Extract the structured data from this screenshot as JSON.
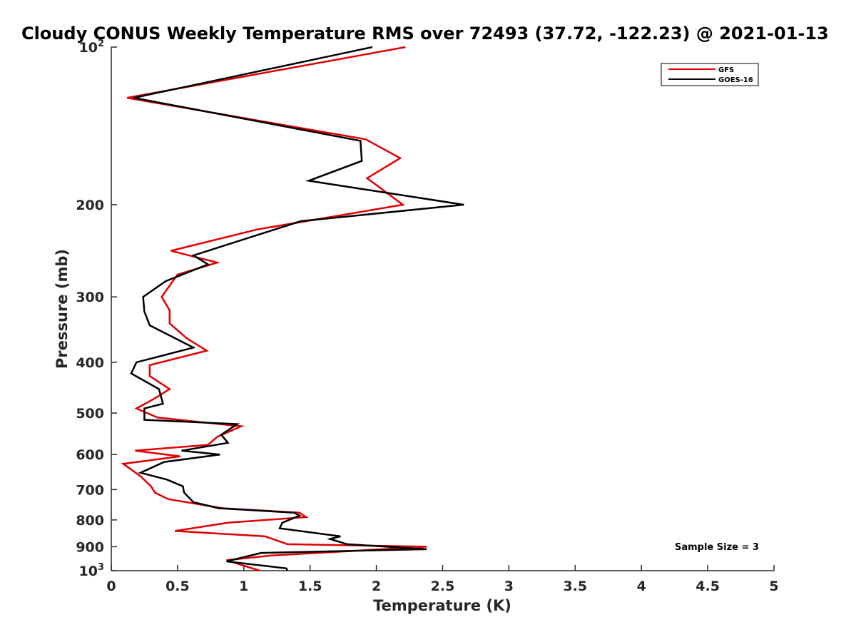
{
  "chart_data": {
    "type": "line",
    "title": "Cloudy CONUS Weekly Temperature RMS over 72493 (37.72, -122.23) @ 2021-01-13",
    "xlabel": "Temperature (K)",
    "ylabel": "Pressure (mb)",
    "xlim": [
      0,
      5
    ],
    "ylim": [
      100,
      1000
    ],
    "y_scale": "log",
    "y_reversed": true,
    "x_ticks": [
      "0",
      "0.5",
      "1",
      "1.5",
      "2",
      "2.5",
      "3",
      "3.5",
      "4",
      "4.5",
      "5"
    ],
    "y_ticks": [
      {
        "value": 100,
        "base": "10",
        "exp": "2"
      },
      {
        "value": 200,
        "label": "200"
      },
      {
        "value": 300,
        "label": "300"
      },
      {
        "value": 400,
        "label": "400"
      },
      {
        "value": 500,
        "label": "500"
      },
      {
        "value": 600,
        "label": "600"
      },
      {
        "value": 700,
        "label": "700"
      },
      {
        "value": 800,
        "label": "800"
      },
      {
        "value": 900,
        "label": "900"
      },
      {
        "value": 1000,
        "base": "10",
        "exp": "3"
      }
    ],
    "grid": false,
    "legend_position": "top-right",
    "annotation": "Sample Size = 3",
    "series": [
      {
        "name": "GFS",
        "color": "#e00000",
        "points": [
          [
            2.22,
            100
          ],
          [
            0.12,
            125
          ],
          [
            1.92,
            150
          ],
          [
            2.18,
            163
          ],
          [
            1.93,
            178
          ],
          [
            2.2,
            200
          ],
          [
            1.1,
            223
          ],
          [
            0.45,
            245
          ],
          [
            0.8,
            258
          ],
          [
            0.5,
            272
          ],
          [
            0.38,
            300
          ],
          [
            0.44,
            318
          ],
          [
            0.44,
            337
          ],
          [
            0.57,
            360
          ],
          [
            0.72,
            380
          ],
          [
            0.29,
            405
          ],
          [
            0.29,
            425
          ],
          [
            0.44,
            450
          ],
          [
            0.32,
            470
          ],
          [
            0.19,
            490
          ],
          [
            0.35,
            510
          ],
          [
            0.98,
            530
          ],
          [
            0.8,
            555
          ],
          [
            0.73,
            575
          ],
          [
            0.18,
            590
          ],
          [
            0.52,
            605
          ],
          [
            0.09,
            625
          ],
          [
            0.22,
            660
          ],
          [
            0.3,
            690
          ],
          [
            0.33,
            710
          ],
          [
            0.43,
            730
          ],
          [
            0.84,
            760
          ],
          [
            1.42,
            775
          ],
          [
            1.47,
            790
          ],
          [
            0.88,
            810
          ],
          [
            0.48,
            840
          ],
          [
            1.16,
            860
          ],
          [
            1.33,
            890
          ],
          [
            2.38,
            900
          ],
          [
            1.22,
            935
          ],
          [
            0.87,
            955
          ],
          [
            1.12,
            1000
          ]
        ]
      },
      {
        "name": "GOES-16",
        "color": "#000000",
        "points": [
          [
            1.97,
            100
          ],
          [
            0.17,
            125
          ],
          [
            1.88,
            151
          ],
          [
            1.89,
            165
          ],
          [
            1.49,
            180
          ],
          [
            2.66,
            200
          ],
          [
            1.43,
            215
          ],
          [
            0.62,
            250
          ],
          [
            0.73,
            260
          ],
          [
            0.41,
            280
          ],
          [
            0.24,
            300
          ],
          [
            0.25,
            320
          ],
          [
            0.29,
            340
          ],
          [
            0.62,
            375
          ],
          [
            0.19,
            400
          ],
          [
            0.15,
            420
          ],
          [
            0.36,
            450
          ],
          [
            0.39,
            480
          ],
          [
            0.25,
            490
          ],
          [
            0.25,
            515
          ],
          [
            0.95,
            525
          ],
          [
            0.83,
            550
          ],
          [
            0.88,
            570
          ],
          [
            0.53,
            590
          ],
          [
            0.82,
            600
          ],
          [
            0.4,
            620
          ],
          [
            0.22,
            650
          ],
          [
            0.42,
            670
          ],
          [
            0.54,
            690
          ],
          [
            0.55,
            710
          ],
          [
            0.62,
            740
          ],
          [
            0.81,
            760
          ],
          [
            1.38,
            775
          ],
          [
            1.42,
            785
          ],
          [
            1.29,
            810
          ],
          [
            1.27,
            830
          ],
          [
            1.73,
            860
          ],
          [
            1.65,
            870
          ],
          [
            1.78,
            890
          ],
          [
            2.38,
            910
          ],
          [
            1.13,
            925
          ],
          [
            0.87,
            960
          ],
          [
            1.32,
            990
          ],
          [
            1.33,
            1000
          ]
        ]
      }
    ]
  }
}
